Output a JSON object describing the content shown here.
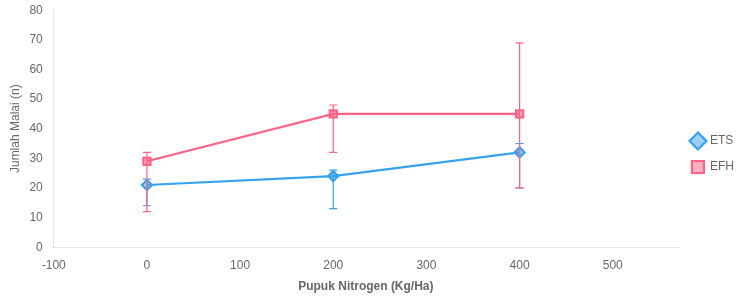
{
  "chart_data": {
    "type": "line",
    "xlabel": "Pupuk Nitrogen (Kg/Ha)",
    "ylabel": "Jumlah Malai (n)",
    "x": [
      0,
      200,
      400
    ],
    "series": [
      {
        "name": "ETS",
        "values": [
          21,
          24,
          32
        ],
        "yerr_lower": [
          7,
          11,
          12
        ],
        "yerr_upper": [
          2,
          2,
          3
        ],
        "marker": "diamond"
      },
      {
        "name": "EFH",
        "values": [
          29,
          45,
          45
        ],
        "yerr_lower": [
          17,
          13,
          25
        ],
        "yerr_upper": [
          3,
          3,
          24
        ],
        "marker": "square"
      }
    ],
    "xlim": [
      -100,
      570
    ],
    "xticks": [
      -100,
      0,
      100,
      200,
      300,
      400,
      500
    ],
    "ylim": [
      0,
      80
    ],
    "yticks": [
      0,
      10,
      20,
      30,
      40,
      50,
      60,
      70,
      80
    ],
    "grid": false,
    "legend": "right"
  }
}
